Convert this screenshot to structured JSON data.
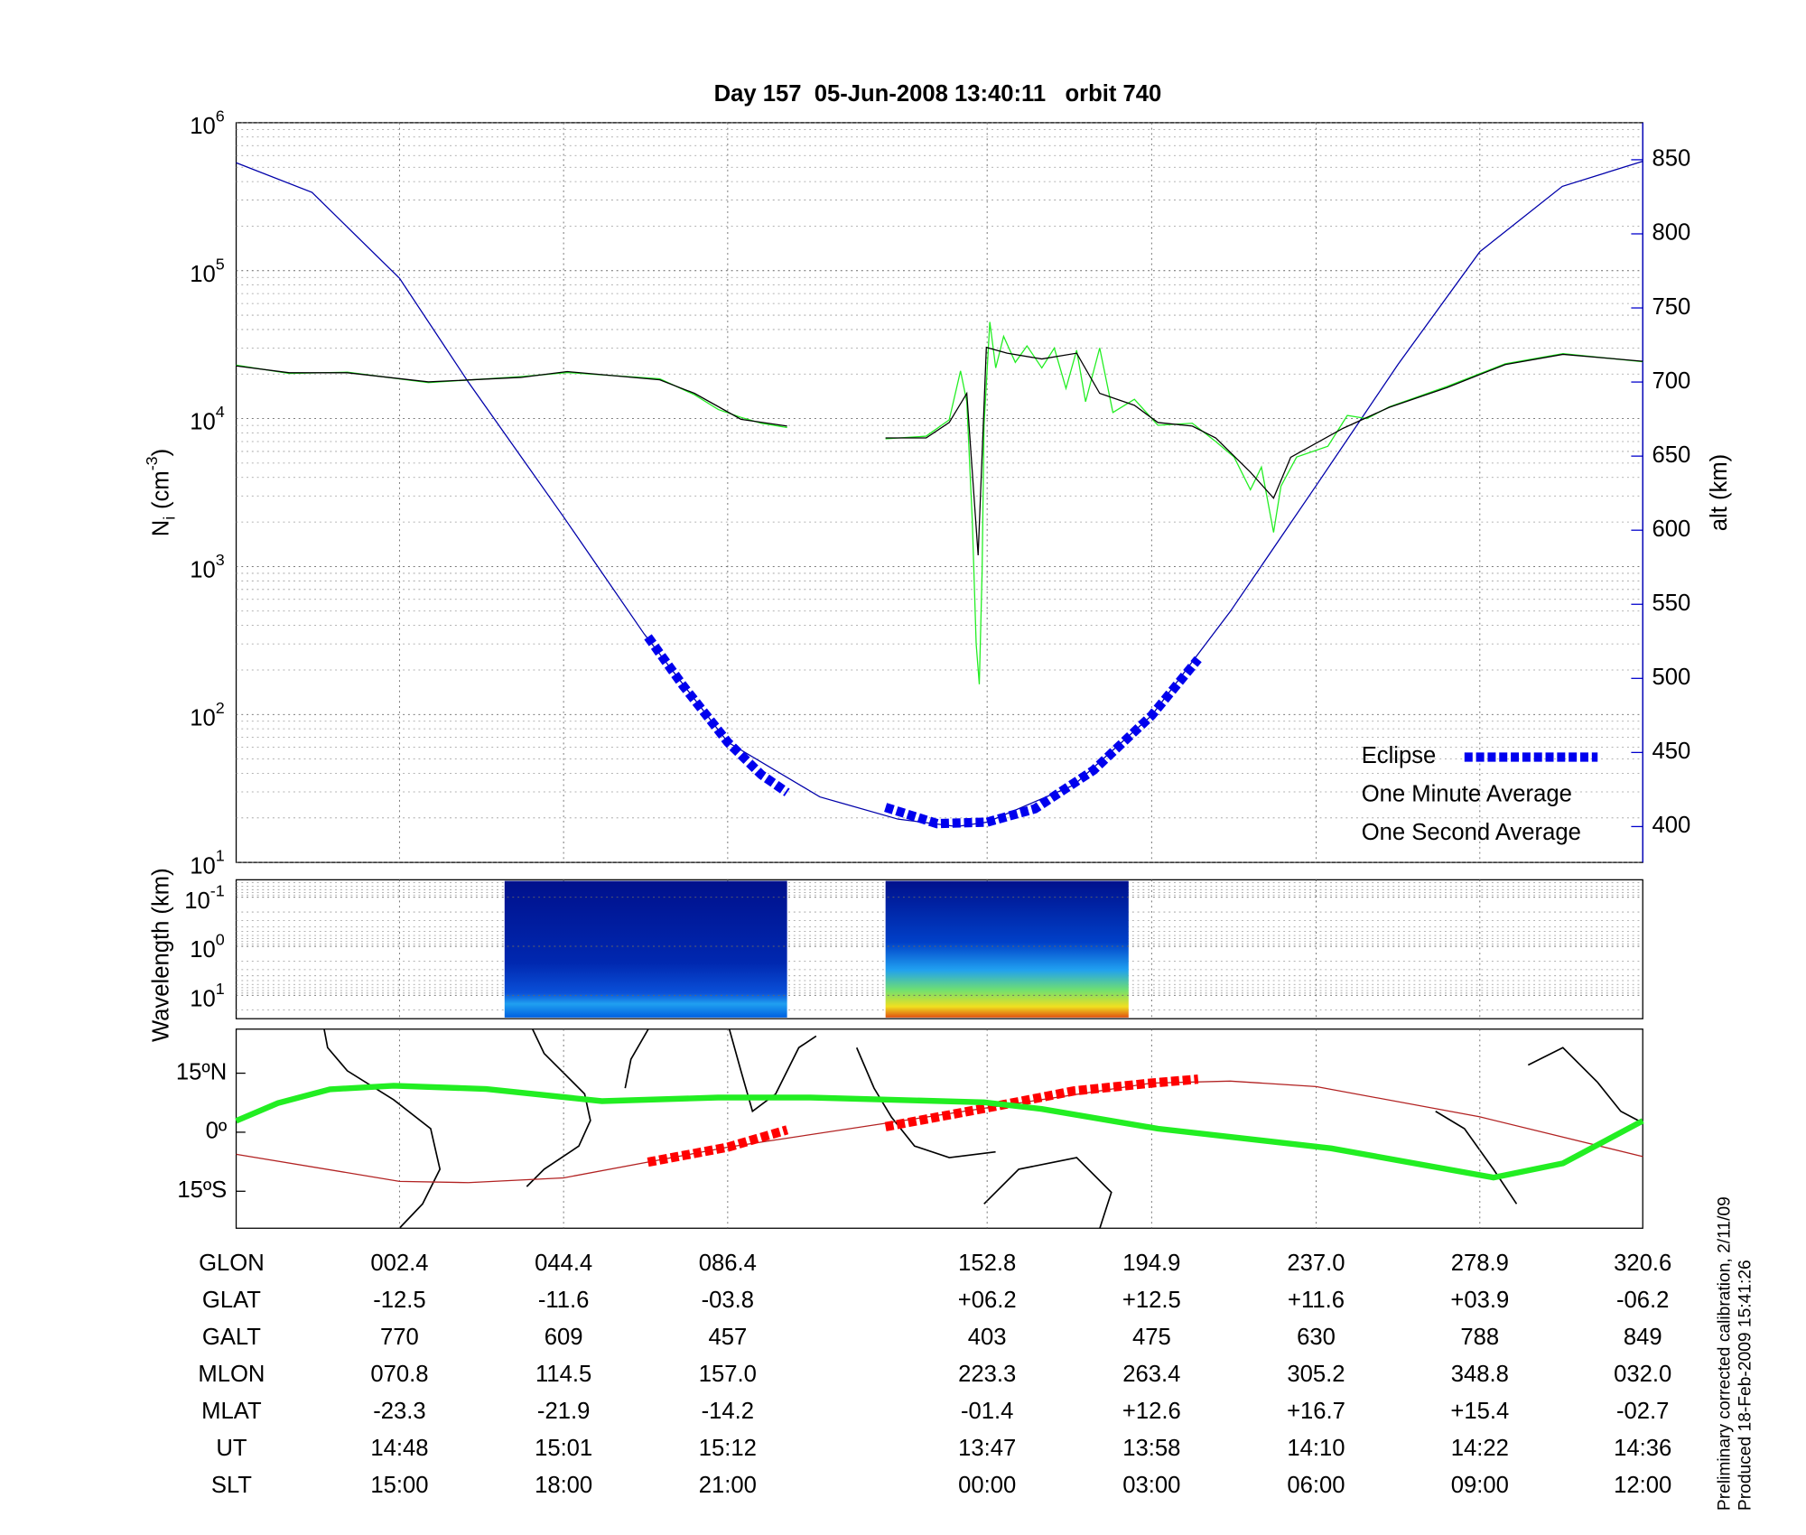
{
  "chart_data": [
    {
      "type": "line",
      "title": "Day 157  05-Jun-2008 13:40:11   orbit 740",
      "y_label": {
        "text": "N",
        "sub": "i",
        "unit": "(cm",
        "sup": "-3",
        "end": ")"
      },
      "y2_label": "alt (km)",
      "x_label": "GLON",
      "log_y": true,
      "grid": true,
      "legend": "lower right",
      "xlim": [
        -39.4,
        320.6
      ],
      "xticks": [
        {
          "value": 2.4,
          "label": "002.4"
        },
        {
          "value": 44.4,
          "label": "044.4"
        },
        {
          "value": 86.4,
          "label": "086.4"
        },
        152.8,
        194.9,
        {
          "value": 237.0,
          "label": "237.0"
        },
        278.9,
        320.6
      ],
      "ylim": [
        10,
        1000000
      ],
      "yticks": [
        {
          "value": 10,
          "label": "10",
          "exponent": "1"
        },
        {
          "value": 100,
          "label": "10",
          "exponent": "2"
        },
        {
          "value": 1000,
          "label": "10",
          "exponent": "3"
        },
        {
          "value": 10000,
          "label": "10",
          "exponent": "4"
        },
        {
          "value": 100000,
          "label": "10",
          "exponent": "5"
        },
        {
          "value": 1000000,
          "label": "10",
          "exponent": "6"
        }
      ],
      "y2lim": [
        375.8,
        875
      ],
      "y2ticks": [
        400,
        450,
        500,
        550,
        600,
        650,
        700,
        750,
        800,
        850
      ],
      "y2_color": "#0000cc",
      "series": [
        {
          "name": "Eclipse",
          "color": "#0000ee",
          "axis": "y2",
          "style": "dashed",
          "x": [
            66.0,
            75.0,
            86.4,
            95.0,
            101.6,
            null,
            126.8,
            140.0,
            152.8,
            165.0,
            180.0,
            194.9,
            206.8
          ],
          "values": [
            528,
            495,
            457,
            435,
            423,
            null,
            413,
            402,
            403,
            412,
            438,
            475,
            513
          ]
        },
        {
          "name": "One Minute Average",
          "color": "#000000",
          "x": [
            -39.4,
            -25.8,
            -11.0,
            9.8,
            33.5,
            45.3,
            69.0,
            77.9,
            89.8,
            101.6,
            null,
            126.8,
            137.2,
            143.1,
            147.6,
            150.5,
            152.6,
            157.9,
            166.8,
            175.7,
            181.6,
            190.5,
            196.5,
            205.3,
            211.3,
            220.2,
            226.1,
            230.5,
            243.9,
            255.7,
            270.5,
            285.4,
            300.2,
            320.6
          ],
          "values": [
            22700,
            20400,
            20400,
            17700,
            19000,
            20800,
            18300,
            14800,
            9900,
            8900,
            null,
            7400,
            7400,
            9400,
            14800,
            1190,
            30300,
            27700,
            25300,
            27700,
            14800,
            12300,
            9400,
            8900,
            7400,
            4340,
            2900,
            5480,
            8590,
            11900,
            16200,
            23200,
            27200,
            24400
          ]
        },
        {
          "name": "One Second Average",
          "color": "#22ee22",
          "x": [
            -39.4,
            -25.8,
            -11.0,
            9.8,
            33.5,
            45.3,
            69.0,
            77.9,
            84.0,
            89.8,
            95.0,
            101.6,
            null,
            126.8,
            137.2,
            143.1,
            146.0,
            147.6,
            149.0,
            150.0,
            150.8,
            151.5,
            152.0,
            153.5,
            155.0,
            157.0,
            160.0,
            163.0,
            166.8,
            170.0,
            173.0,
            175.7,
            178.0,
            181.6,
            185.0,
            190.5,
            196.5,
            205.3,
            211.3,
            216.0,
            220.2,
            223.0,
            226.1,
            228.0,
            232.0,
            240.0,
            245.0,
            250.0,
            255.7,
            270.5,
            285.4,
            300.2,
            320.6
          ],
          "values": [
            23000,
            20200,
            20600,
            17500,
            19200,
            20500,
            18600,
            14500,
            11500,
            10200,
            9300,
            8700,
            null,
            7300,
            7600,
            9800,
            21000,
            13000,
            2000,
            300,
            160,
            900,
            9000,
            45000,
            22000,
            36000,
            24000,
            31000,
            22000,
            30000,
            16000,
            29000,
            13000,
            30000,
            11000,
            13500,
            9000,
            9300,
            7000,
            5500,
            3300,
            4700,
            1700,
            3500,
            5500,
            6500,
            10500,
            10000,
            12000,
            16500,
            23500,
            27500,
            24200
          ]
        },
        {
          "color": "#0000aa",
          "axis": "y2",
          "x": [
            -39.4,
            -20.0,
            2.4,
            20.0,
            44.4,
            65.0,
            86.4,
            110.0,
            130.0,
            145.0,
            152.8,
            175.0,
            194.9,
            215.0,
            237.0,
            258.0,
            278.9,
            300.0,
            320.6
          ],
          "values": [
            848,
            828,
            770,
            700,
            609,
            530,
            457,
            420,
            405,
            400,
            403,
            428,
            475,
            545,
            630,
            712,
            788,
            832,
            849
          ]
        }
      ]
    },
    {
      "type": "spectrogram",
      "y_label": "Wavelength (km)",
      "log_y": true,
      "ylim": [
        30,
        0.044
      ],
      "yticks": [
        {
          "value": 0.1,
          "label": "10",
          "exponent": "-1"
        },
        {
          "value": 1,
          "label": "10",
          "exponent": "0"
        },
        {
          "value": 10,
          "label": "10",
          "exponent": "1"
        }
      ],
      "segments": [
        [
          29.3,
          101.6
        ],
        [
          126.8,
          189.0
        ]
      ]
    },
    {
      "type": "map",
      "ylim": [
        -24.4,
        26.2
      ],
      "yticks": [
        {
          "value": 15,
          "label": "15ºN"
        },
        {
          "value": 0,
          "label": "0º"
        },
        {
          "value": -15,
          "label": "15ºS"
        }
      ],
      "series": [
        {
          "color": "#b22222",
          "x": [
            -39.4,
            2.4,
            20.0,
            44.4,
            86.4,
            152.8,
            194.9,
            215.0,
            237.0,
            278.9,
            320.6
          ],
          "values": [
            -5.6,
            -12.5,
            -12.8,
            -11.6,
            -3.8,
            6.2,
            12.5,
            13.0,
            11.6,
            3.9,
            -6.2
          ]
        },
        {
          "color": "#ff0000",
          "style": "dashed",
          "x": [
            66.0,
            86.4,
            101.6,
            null,
            126.8,
            152.8,
            175.0,
            194.9,
            206.8
          ],
          "values": [
            -7.6,
            -3.8,
            0.6,
            null,
            1.4,
            6.2,
            10.5,
            12.5,
            13.5
          ]
        },
        {
          "color": "#22ee22",
          "x": [
            -39.4,
            -28.7,
            -15.4,
            0.9,
            24.6,
            54.2,
            83.9,
            107.6,
            152.0,
            166.8,
            196.5,
            240.9,
            282.4,
            300.2,
            320.6
          ],
          "values": [
            2.9,
            7.4,
            10.9,
            11.8,
            11.0,
            7.9,
            8.8,
            8.8,
            7.6,
            5.9,
            0.9,
            -4.1,
            -11.5,
            -7.9,
            2.9
          ]
        }
      ]
    }
  ],
  "table": {
    "rows": [
      {
        "label": "GLAT",
        "values": [
          "-12.5",
          "-11.6",
          "-03.8",
          "+06.2",
          "+12.5",
          "+11.6",
          "+03.9",
          "-06.2"
        ]
      },
      {
        "label": "GALT",
        "values": [
          "770",
          "609",
          "457",
          "403",
          "475",
          "630",
          "788",
          "849"
        ]
      },
      {
        "label": "MLON",
        "values": [
          "070.8",
          "114.5",
          "157.0",
          "223.3",
          "263.4",
          "305.2",
          "348.8",
          "032.0"
        ]
      },
      {
        "label": "MLAT",
        "values": [
          "-23.3",
          "-21.9",
          "-14.2",
          "-01.4",
          "+12.6",
          "+16.7",
          "+15.4",
          "-02.7"
        ]
      },
      {
        "label": "UT",
        "values": [
          "14:48",
          "15:01",
          "15:12",
          "13:47",
          "13:58",
          "14:10",
          "14:22",
          "14:36"
        ]
      },
      {
        "label": "SLT",
        "values": [
          "15:00",
          "18:00",
          "21:00",
          "00:00",
          "03:00",
          "06:00",
          "09:00",
          "12:00"
        ]
      }
    ]
  },
  "footer": [
    "Preliminary corrected calibration, 2/11/09",
    "Produced 18-Feb-2009 15:41:26"
  ]
}
